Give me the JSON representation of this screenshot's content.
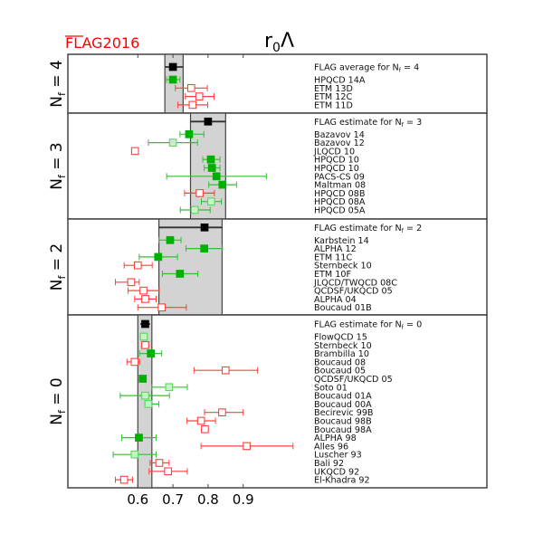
{
  "chart_data": {
    "type": "scatter",
    "title": "r0Λ",
    "title_main": "r",
    "title_sub": "0",
    "title_tail": "Λ",
    "logo": "FLAG2016",
    "xlabel": "",
    "xlim": [
      0.45,
      1.61
    ],
    "xticks": [
      0.6,
      0.7,
      0.8,
      0.9
    ],
    "xtick_labels": [
      "0.6",
      "0.7",
      "0.8",
      "0.9"
    ],
    "colors": {
      "black": "#000000",
      "green": "#00b000",
      "lightgreen": "#c8f2c8",
      "red": "#ff4040",
      "band": "#d3d3d3"
    },
    "panels": [
      {
        "label": "Nf = 4",
        "label_main": "N",
        "label_sub": "f",
        "label_tail": " = 4",
        "band": [
          0.677,
          0.729
        ],
        "rows": [
          {
            "name": "FLAG average for Nf=4",
            "name_main": "FLAG average for N",
            "name_sub": "f",
            "name_tail": " = 4",
            "kind": "black",
            "value": 0.7,
            "err": [
              0.677,
              0.729
            ]
          },
          {
            "name": "HPQCD 14A",
            "kind": "green",
            "value": 0.7,
            "err": [
              0.682,
              0.72
            ]
          },
          {
            "name": "ETM 13D",
            "kind": "red",
            "value": 0.752,
            "err": [
              0.707,
              0.798
            ]
          },
          {
            "name": "ETM 12C",
            "kind": "red",
            "value": 0.775,
            "err": [
              0.735,
              0.817
            ]
          },
          {
            "name": "ETM 11D",
            "kind": "red",
            "value": 0.756,
            "err": [
              0.714,
              0.799
            ]
          }
        ]
      },
      {
        "label": "Nf = 3",
        "label_main": "N",
        "label_sub": "f",
        "label_tail": " = 3",
        "band": [
          0.75,
          0.85
        ],
        "rows": [
          {
            "name": "FLAG estimate for Nf=3",
            "name_main": "FLAG estimate for N",
            "name_sub": "f",
            "name_tail": " = 3",
            "kind": "black",
            "value": 0.8,
            "err": [
              0.75,
              0.85
            ]
          },
          {
            "name": "Bazavov 14",
            "kind": "green",
            "value": 0.746,
            "err": [
              0.72,
              0.788
            ]
          },
          {
            "name": "Bazavov 12",
            "kind": "lightgreen",
            "value": 0.7,
            "err": [
              0.63,
              0.77
            ]
          },
          {
            "name": "JLQCD 10",
            "kind": "red",
            "value": 0.592,
            "err": null
          },
          {
            "name": "HPQCD 10",
            "kind": "green",
            "value": 0.808,
            "err": [
              0.785,
              0.834
            ]
          },
          {
            "name": "HPQCD 10",
            "kind": "green",
            "value": 0.811,
            "err": [
              0.789,
              0.834
            ]
          },
          {
            "name": "PACS-CS 09",
            "kind": "green",
            "value": 0.824,
            "err": [
              0.682,
              0.966
            ]
          },
          {
            "name": "Maltman 08",
            "kind": "green",
            "value": 0.841,
            "err": [
              0.802,
              0.881
            ]
          },
          {
            "name": "HPQCD 08B",
            "kind": "red",
            "value": 0.776,
            "err": [
              0.733,
              0.818
            ]
          },
          {
            "name": "HPQCD 08A",
            "kind": "lightgreen",
            "value": 0.809,
            "err": [
              0.781,
              0.838
            ]
          },
          {
            "name": "HPQCD 05A",
            "kind": "lightgreen",
            "value": 0.762,
            "err": [
              0.721,
              0.806
            ]
          }
        ]
      },
      {
        "label": "Nf = 2",
        "label_main": "N",
        "label_sub": "f",
        "label_tail": " = 2",
        "band": [
          0.66,
          0.84
        ],
        "rows": [
          {
            "name": "FLAG estimate for Nf=2",
            "name_main": "FLAG estimate for N",
            "name_sub": "f",
            "name_tail": " = 2",
            "kind": "black",
            "value": 0.79,
            "err": [
              0.66,
              0.84
            ]
          },
          {
            "name": "Karbstein 14",
            "kind": "green",
            "value": 0.692,
            "err": [
              0.66,
              0.723
            ]
          },
          {
            "name": "ALPHA 12",
            "kind": "green",
            "value": 0.789,
            "err": [
              0.737,
              0.841
            ]
          },
          {
            "name": "ETM 11C",
            "kind": "green",
            "value": 0.658,
            "err": [
              0.604,
              0.713
            ]
          },
          {
            "name": "Sternbeck 10",
            "kind": "red",
            "value": 0.6,
            "err": [
              0.561,
              0.641
            ]
          },
          {
            "name": "ETM 10F",
            "kind": "green",
            "value": 0.72,
            "err": [
              0.67,
              0.771
            ]
          },
          {
            "name": "JLQCD/TWQCD 08C",
            "kind": "red",
            "value": 0.581,
            "err": [
              0.536,
              0.604
            ]
          },
          {
            "name": "QCDSF/UKQCD 05",
            "kind": "red",
            "value": 0.616,
            "err": [
              0.572,
              0.661
            ]
          },
          {
            "name": "ALPHA 04",
            "kind": "red",
            "value": 0.621,
            "err": [
              0.591,
              0.652
            ]
          },
          {
            "name": "Boucaud 01B",
            "kind": "red",
            "value": 0.668,
            "err": [
              0.6,
              0.738
            ]
          }
        ]
      },
      {
        "label": "Nf = 0",
        "label_main": "N",
        "label_sub": "f",
        "label_tail": " = 0",
        "band": [
          0.6,
          0.64
        ],
        "rows": [
          {
            "name": "FLAG estimate for Nf=0",
            "name_main": "FLAG estimate for N",
            "name_sub": "f",
            "name_tail": " = 0",
            "kind": "black",
            "value": 0.621,
            "err": [
              0.607,
              0.635
            ]
          },
          {
            "name": "FlowQCD 15",
            "kind": "lightgreen",
            "value": 0.617,
            "err": null
          },
          {
            "name": "Sternbeck 10",
            "kind": "red",
            "value": 0.621,
            "err": null
          },
          {
            "name": "Brambilla 10",
            "kind": "green",
            "value": 0.637,
            "err": [
              0.605,
              0.668
            ]
          },
          {
            "name": "Boucaud 08",
            "kind": "red",
            "value": 0.591,
            "err": [
              0.569,
              0.605
            ]
          },
          {
            "name": "Boucaud 05",
            "kind": "red",
            "value": 0.85,
            "err": [
              0.76,
              0.941
            ]
          },
          {
            "name": "QCDSF/UKQCD 05",
            "kind": "green",
            "value": 0.614,
            "err": null
          },
          {
            "name": "Soto 01",
            "kind": "lightgreen",
            "value": 0.689,
            "err": [
              0.64,
              0.741
            ]
          },
          {
            "name": "Boucaud 01A",
            "kind": "lightgreen",
            "value": 0.621,
            "err": [
              0.55,
              0.69
            ]
          },
          {
            "name": "Boucaud 00A",
            "kind": "lightgreen",
            "value": 0.63,
            "err": [
              0.621,
              0.66
            ]
          },
          {
            "name": "Becirevic 99B",
            "kind": "red",
            "value": 0.84,
            "err": [
              0.79,
              0.9
            ]
          },
          {
            "name": "Boucaud 98B",
            "kind": "red",
            "value": 0.78,
            "err": [
              0.74,
              0.821
            ]
          },
          {
            "name": "Boucaud 98A",
            "kind": "red",
            "value": 0.791,
            "err": null
          },
          {
            "name": "ALPHA 98",
            "kind": "green",
            "value": 0.603,
            "err": [
              0.554,
              0.652
            ]
          },
          {
            "name": "Alles 96",
            "kind": "red",
            "value": 0.91,
            "err": [
              0.78,
              1.042
            ]
          },
          {
            "name": "Luscher 93",
            "kind": "lightgreen",
            "value": 0.591,
            "err": [
              0.53,
              0.652
            ]
          },
          {
            "name": "Bali 92",
            "kind": "red",
            "value": 0.661,
            "err": [
              0.635,
              0.689
            ]
          },
          {
            "name": "UKQCD 92",
            "kind": "red",
            "value": 0.686,
            "err": [
              0.632,
              0.741
            ]
          },
          {
            "name": "El-Khadra 92",
            "kind": "red",
            "value": 0.561,
            "err": [
              0.536,
              0.585
            ]
          }
        ]
      }
    ]
  }
}
